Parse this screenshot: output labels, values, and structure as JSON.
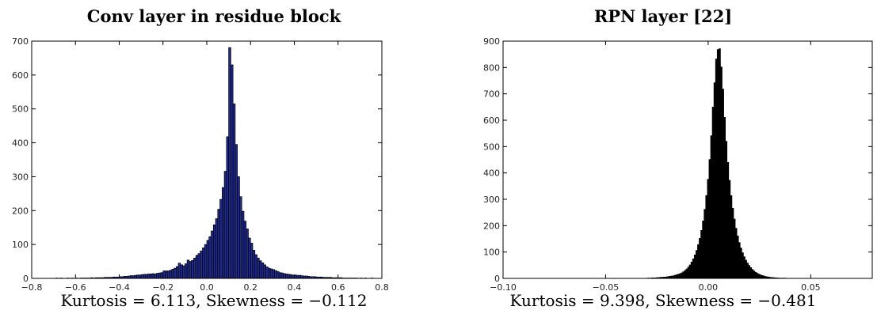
{
  "chart_data": [
    {
      "type": "bar",
      "title": "Conv layer in residue block",
      "caption": "Kurtosis = 6.113,  Skewness = −0.112",
      "xlabel": "",
      "ylabel": "",
      "xlim": [
        -0.8,
        0.8
      ],
      "ylim": [
        0,
        700
      ],
      "xticks": [
        -0.8,
        -0.6,
        -0.4,
        -0.2,
        0.0,
        0.2,
        0.4,
        0.6,
        0.8
      ],
      "xtick_labels": [
        "−0.8",
        "−0.6",
        "−0.4",
        "−0.2",
        "0.0",
        "0.2",
        "0.4",
        "0.6",
        "0.8"
      ],
      "yticks": [
        0,
        100,
        200,
        300,
        400,
        500,
        600,
        700
      ],
      "ytick_labels": [
        "0",
        "100",
        "200",
        "300",
        "400",
        "500",
        "600",
        "700"
      ],
      "bar_color": "#1f2a8c",
      "edge_color": "#000000",
      "grid": false,
      "bins": {
        "start": -0.7,
        "width": 0.01,
        "counts": [
          0,
          1,
          0,
          1,
          0,
          0,
          1,
          0,
          1,
          0,
          1,
          0,
          1,
          1,
          1,
          1,
          1,
          2,
          1,
          2,
          2,
          2,
          2,
          3,
          3,
          3,
          3,
          4,
          4,
          4,
          5,
          5,
          6,
          6,
          7,
          8,
          8,
          9,
          10,
          10,
          11,
          12,
          12,
          13,
          13,
          14,
          13,
          15,
          16,
          17,
          22,
          22,
          22,
          24,
          27,
          30,
          35,
          45,
          40,
          37,
          43,
          54,
          50,
          53,
          60,
          68,
          73,
          81,
          90,
          100,
          112,
          123,
          140,
          158,
          176,
          204,
          233,
          268,
          316,
          418,
          681,
          630,
          515,
          395,
          300,
          241,
          198,
          169,
          146,
          119,
          104,
          83,
          70,
          60,
          52,
          46,
          40,
          34,
          30,
          28,
          26,
          23,
          20,
          17,
          16,
          14,
          13,
          12,
          11,
          10,
          10,
          9,
          9,
          8,
          7,
          7,
          6,
          5,
          5,
          5,
          4,
          4,
          4,
          3,
          3,
          3,
          3,
          2,
          2,
          2,
          2,
          2,
          1,
          1,
          1,
          1,
          1,
          1,
          1,
          0,
          1,
          0,
          1,
          0,
          0,
          1
        ]
      }
    },
    {
      "type": "bar",
      "title": "RPN layer [22]",
      "caption": "Kurtosis = 9.398,  Skewness = −0.481",
      "xlabel": "",
      "ylabel": "",
      "xlim": [
        -0.1,
        0.08
      ],
      "ylim": [
        0,
        900
      ],
      "xticks": [
        -0.1,
        -0.05,
        0.0,
        0.05
      ],
      "xtick_labels": [
        "−0.10",
        "−0.05",
        "0.00",
        "0.05"
      ],
      "yticks": [
        0,
        100,
        200,
        300,
        400,
        500,
        600,
        700,
        800,
        900
      ],
      "ytick_labels": [
        "0",
        "100",
        "200",
        "300",
        "400",
        "500",
        "600",
        "700",
        "800",
        "900"
      ],
      "bar_color": "#000000",
      "edge_color": "#000000",
      "grid": false,
      "bins": {
        "start": -0.03,
        "width": 0.0008,
        "counts": [
          1,
          1,
          1,
          2,
          2,
          2,
          3,
          3,
          4,
          4,
          5,
          5,
          6,
          7,
          8,
          9,
          10,
          12,
          14,
          16,
          18,
          21,
          25,
          30,
          36,
          43,
          51,
          62,
          74,
          89,
          106,
          128,
          152,
          182,
          218,
          262,
          314,
          376,
          451,
          541,
          650,
          742,
          832,
          868,
          871,
          802,
          718,
          611,
          520,
          440,
          372,
          314,
          266,
          225,
          190,
          161,
          136,
          115,
          97,
          82,
          69,
          58,
          49,
          41,
          34,
          28,
          23,
          19,
          16,
          13,
          11,
          9,
          7,
          6,
          5,
          4,
          3,
          3,
          2,
          2,
          1,
          1,
          1,
          1,
          1
        ]
      }
    }
  ]
}
